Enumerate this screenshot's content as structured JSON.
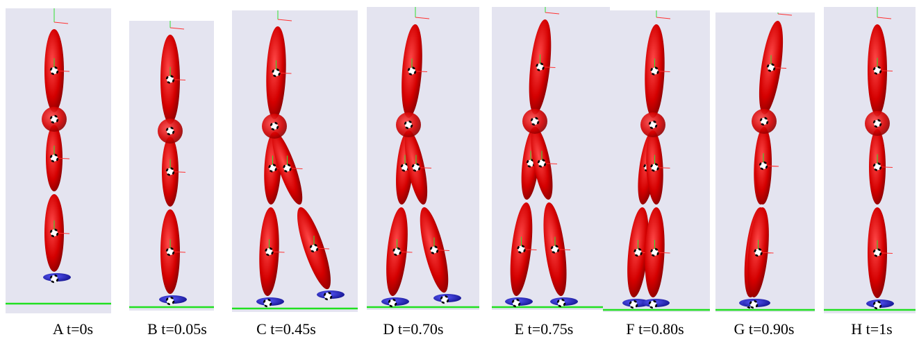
{
  "panels": [
    {
      "label": "A t=0s"
    },
    {
      "label": "B t=0.05s"
    },
    {
      "label": "C t=0.45s"
    },
    {
      "label": "D t=0.70s"
    },
    {
      "label": "E t=0.75s"
    },
    {
      "label": "F t=0.80s"
    },
    {
      "label": "G t=0.90s"
    },
    {
      "label": "H t=1s"
    }
  ]
}
